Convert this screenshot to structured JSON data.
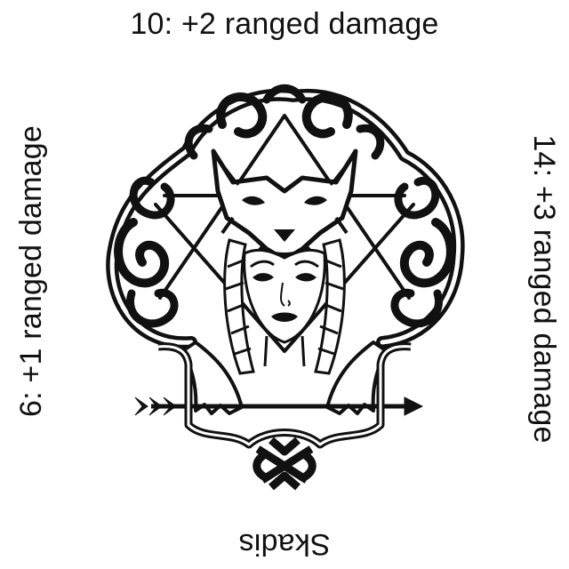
{
  "card": {
    "top_text": "10:  +2 ranged damage",
    "left_text": "6:  +1 ranged damage",
    "right_text": "14: +3 ranged damage",
    "bottom_text": "Skadis"
  },
  "emblem": {
    "icon": "skadi-wolf-hood-emblem-icon",
    "ink_color": "#111111",
    "paper_color": "#ffffff"
  }
}
